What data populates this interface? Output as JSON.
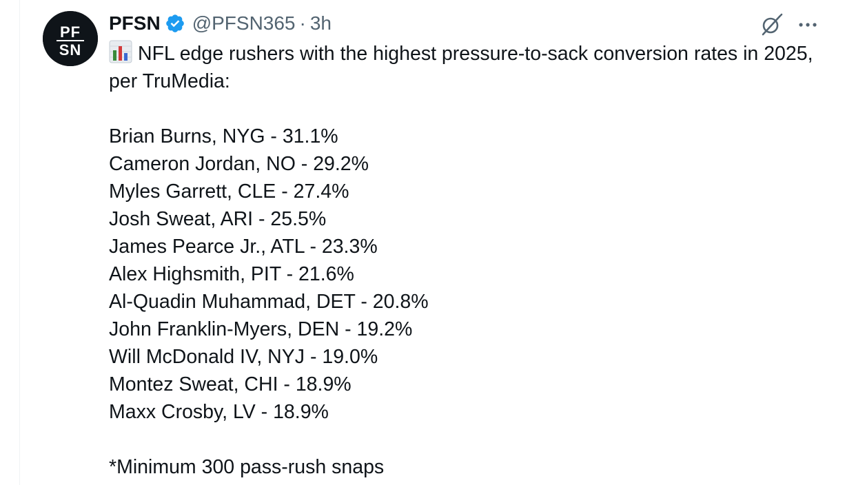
{
  "tweet": {
    "display_name": "PFSN",
    "handle": "@PFSN365",
    "separator": "·",
    "time": "3h",
    "avatar_text_top": "PF",
    "avatar_text_bottom": "SN",
    "verified_color": "#1d9bf0",
    "emoji": "bar-chart-icon",
    "intro_text": "NFL edge rushers with the highest pressure-to-sack conversion rates in 2025, per TruMedia:",
    "list": [
      "Brian Burns, NYG - 31.1%",
      "Cameron Jordan, NO - 29.2%",
      "Myles Garrett, CLE - 27.4%",
      "Josh Sweat, ARI - 25.5%",
      "James Pearce Jr., ATL - 23.3%",
      "Alex Highsmith, PIT - 21.6%",
      "Al-Quadin Muhammad, DET - 20.8%",
      "John Franklin-Myers, DEN - 19.2%",
      "Will McDonald IV, NYJ - 19.0%",
      "Montez Sweat, CHI - 18.9%",
      "Maxx Crosby, LV - 18.9%"
    ],
    "footnote": "*Minimum 300 pass-rush snaps"
  }
}
